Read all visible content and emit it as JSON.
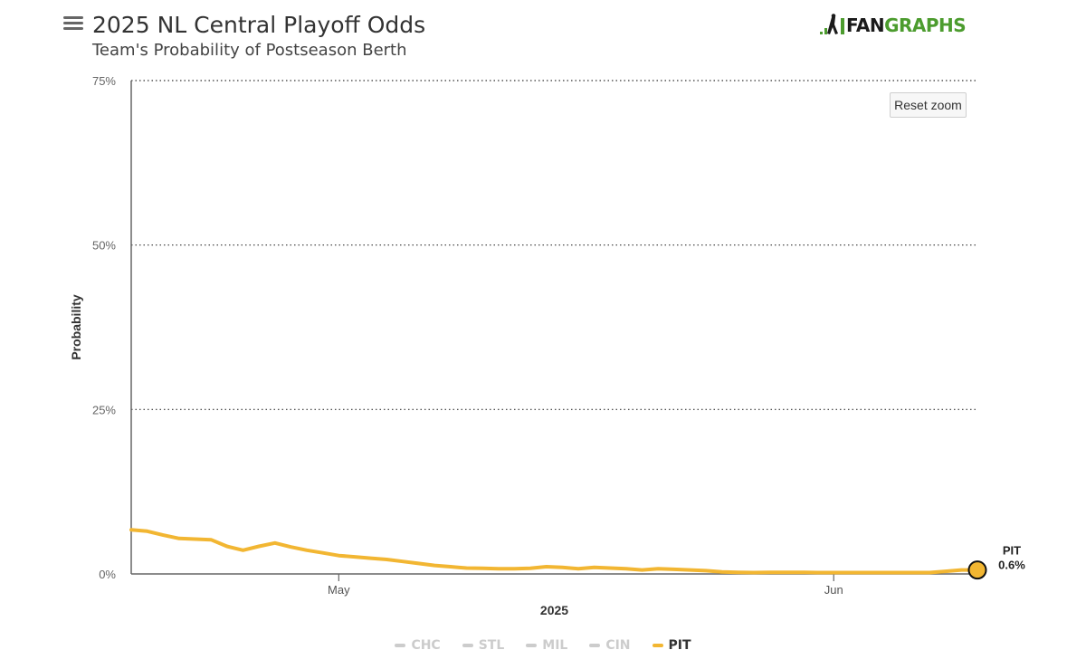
{
  "header": {
    "title": "2025 NL Central Playoff Odds",
    "subtitle": "Team's Probability of Postseason Berth",
    "menu_icon": "hamburger-menu-icon",
    "logo_text_fan": "FAN",
    "logo_text_graphs": "GRAPHS"
  },
  "controls": {
    "reset_zoom_label": "Reset zoom"
  },
  "colors": {
    "pit": "#f2b632",
    "axis": "#666666",
    "grid": "#333333",
    "inactive_legend": "#cccccc",
    "brand_green": "#4c9c2e"
  },
  "chart_data": {
    "type": "line",
    "title": "2025 NL Central Playoff Odds",
    "subtitle": "Team's Probability of Postseason Berth",
    "xlabel": "2025",
    "ylabel": "Probability",
    "ylim": [
      0,
      75
    ],
    "xlim": [
      "2025-04-18",
      "2025-06-10"
    ],
    "y_ticks": [
      "0%",
      "25%",
      "50%",
      "75%"
    ],
    "x_ticks": [
      {
        "date": "2025-05-01",
        "label": "May"
      },
      {
        "date": "2025-06-01",
        "label": "Jun"
      }
    ],
    "grid": true,
    "legend_position": "bottom",
    "legend": [
      {
        "label": "CHC",
        "visible": false
      },
      {
        "label": "STL",
        "visible": false
      },
      {
        "label": "MIL",
        "visible": false
      },
      {
        "label": "CIN",
        "visible": false
      },
      {
        "label": "PIT",
        "visible": true
      }
    ],
    "series": [
      {
        "name": "PIT",
        "color": "#f2b632",
        "x": [
          "2025-04-18",
          "2025-04-19",
          "2025-04-20",
          "2025-04-21",
          "2025-04-22",
          "2025-04-23",
          "2025-04-24",
          "2025-04-25",
          "2025-04-26",
          "2025-04-27",
          "2025-04-28",
          "2025-04-29",
          "2025-04-30",
          "2025-05-01",
          "2025-05-02",
          "2025-05-03",
          "2025-05-04",
          "2025-05-05",
          "2025-05-06",
          "2025-05-07",
          "2025-05-08",
          "2025-05-09",
          "2025-05-10",
          "2025-05-11",
          "2025-05-12",
          "2025-05-13",
          "2025-05-14",
          "2025-05-15",
          "2025-05-16",
          "2025-05-17",
          "2025-05-18",
          "2025-05-19",
          "2025-05-20",
          "2025-05-21",
          "2025-05-22",
          "2025-05-23",
          "2025-05-24",
          "2025-05-25",
          "2025-05-26",
          "2025-05-27",
          "2025-05-28",
          "2025-05-29",
          "2025-05-30",
          "2025-05-31",
          "2025-06-01",
          "2025-06-02",
          "2025-06-03",
          "2025-06-04",
          "2025-06-05",
          "2025-06-06",
          "2025-06-07",
          "2025-06-08",
          "2025-06-09",
          "2025-06-10"
        ],
        "values": [
          6.7,
          6.5,
          5.9,
          5.4,
          5.3,
          5.2,
          4.2,
          3.6,
          4.2,
          4.7,
          4.1,
          3.6,
          3.2,
          2.8,
          2.6,
          2.4,
          2.2,
          1.9,
          1.6,
          1.3,
          1.1,
          0.9,
          0.85,
          0.8,
          0.8,
          0.85,
          1.1,
          1.0,
          0.8,
          1.0,
          0.9,
          0.8,
          0.6,
          0.8,
          0.7,
          0.6,
          0.5,
          0.3,
          0.25,
          0.2,
          0.25,
          0.25,
          0.25,
          0.2,
          0.2,
          0.2,
          0.2,
          0.2,
          0.2,
          0.2,
          0.2,
          0.4,
          0.6,
          0.6
        ],
        "end_label": "PIT",
        "end_value_label": "0.6%"
      }
    ]
  }
}
